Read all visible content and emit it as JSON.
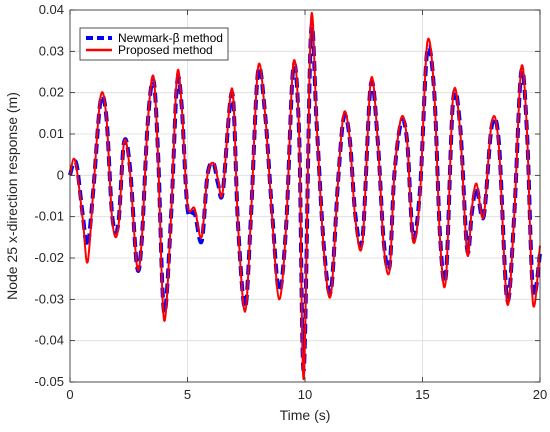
{
  "chart_data": {
    "type": "line",
    "xlabel": "Time (s)",
    "ylabel": "Node 25 x-direction response (m)",
    "xlim": [
      0,
      20
    ],
    "ylim": [
      -0.05,
      0.04
    ],
    "xticks": [
      0,
      5,
      10,
      15,
      20
    ],
    "xtick_labels": [
      "0",
      "5",
      "10",
      "15",
      "20"
    ],
    "yticks": [
      -0.05,
      -0.04,
      -0.03,
      -0.02,
      -0.01,
      0,
      0.01,
      0.02,
      0.03,
      0.04
    ],
    "ytick_labels": [
      "-0.05",
      "-0.04",
      "-0.03",
      "-0.02",
      "-0.01",
      "0",
      "0.01",
      "0.02",
      "0.03",
      "0.04"
    ],
    "grid": true,
    "legend_position": "top-left",
    "series": [
      {
        "name": "Newmark-β method",
        "color": "#0000ff",
        "style": "dashed",
        "x": [
          0,
          0.15,
          0.3,
          0.55,
          0.75,
          1.0,
          1.3,
          1.55,
          1.8,
          2.05,
          2.3,
          2.55,
          2.85,
          3.05,
          3.3,
          3.55,
          3.75,
          4.0,
          4.3,
          4.55,
          4.75,
          5.0,
          5.3,
          5.6,
          5.85,
          6.1,
          6.3,
          6.5,
          6.9,
          7.15,
          7.45,
          7.7,
          8.0,
          8.3,
          8.6,
          8.9,
          9.2,
          9.5,
          9.75,
          9.95,
          10.25,
          10.5,
          10.8,
          11.1,
          11.4,
          11.65,
          11.9,
          12.15,
          12.45,
          12.8,
          13.1,
          13.35,
          13.6,
          13.8,
          14.1,
          14.35,
          14.6,
          14.9,
          15.2,
          15.5,
          15.75,
          16.0,
          16.3,
          16.6,
          16.9,
          17.1,
          17.3,
          17.6,
          17.95,
          18.25,
          18.6,
          18.9,
          19.2,
          19.45,
          19.7,
          20.0
        ],
        "values": [
          0.0,
          0.003,
          0.002,
          -0.01,
          -0.017,
          -0.003,
          0.018,
          0.014,
          -0.01,
          -0.012,
          0.008,
          0.002,
          -0.022,
          -0.016,
          0.012,
          0.023,
          0.005,
          -0.033,
          -0.01,
          0.022,
          0.017,
          -0.008,
          -0.009,
          -0.016,
          0.0,
          0.003,
          -0.002,
          -0.004,
          0.02,
          -0.012,
          -0.032,
          -0.01,
          0.025,
          0.015,
          -0.009,
          -0.028,
          -0.012,
          0.026,
          0.01,
          -0.047,
          0.034,
          0.012,
          -0.017,
          -0.028,
          -0.002,
          0.014,
          0.009,
          -0.01,
          -0.015,
          0.022,
          0.008,
          -0.016,
          -0.022,
          0.0,
          0.013,
          0.008,
          -0.015,
          -0.003,
          0.03,
          0.02,
          -0.015,
          -0.024,
          0.018,
          0.012,
          -0.018,
          -0.009,
          -0.003,
          -0.01,
          0.012,
          0.008,
          -0.03,
          -0.01,
          0.025,
          0.01,
          -0.028,
          -0.019
        ]
      },
      {
        "name": "Proposed method",
        "color": "#ff0000",
        "style": "solid",
        "x": [
          0,
          0.15,
          0.3,
          0.55,
          0.75,
          1.0,
          1.3,
          1.55,
          1.8,
          2.05,
          2.3,
          2.55,
          2.85,
          3.05,
          3.3,
          3.55,
          3.75,
          4.0,
          4.3,
          4.55,
          4.75,
          5.0,
          5.3,
          5.6,
          5.85,
          6.1,
          6.3,
          6.5,
          6.9,
          7.15,
          7.45,
          7.7,
          8.0,
          8.3,
          8.6,
          8.9,
          9.2,
          9.5,
          9.75,
          9.95,
          10.25,
          10.5,
          10.8,
          11.1,
          11.4,
          11.65,
          11.9,
          12.15,
          12.45,
          12.8,
          13.1,
          13.35,
          13.6,
          13.8,
          14.1,
          14.35,
          14.6,
          14.9,
          15.2,
          15.5,
          15.75,
          16.0,
          16.3,
          16.6,
          16.9,
          17.1,
          17.3,
          17.6,
          17.95,
          18.25,
          18.6,
          18.9,
          19.2,
          19.45,
          19.7,
          20.0
        ],
        "values": [
          0.0,
          0.004,
          0.001,
          -0.011,
          -0.021,
          -0.003,
          0.019,
          0.014,
          -0.011,
          -0.013,
          0.008,
          0.001,
          -0.022,
          -0.016,
          0.012,
          0.024,
          0.004,
          -0.035,
          -0.01,
          0.024,
          0.017,
          -0.007,
          -0.008,
          -0.015,
          0.0,
          0.003,
          -0.001,
          -0.004,
          0.021,
          -0.012,
          -0.033,
          -0.01,
          0.026,
          0.015,
          -0.01,
          -0.03,
          -0.012,
          0.027,
          0.01,
          -0.049,
          0.037,
          0.012,
          -0.018,
          -0.029,
          -0.002,
          0.015,
          0.009,
          -0.011,
          -0.016,
          0.023,
          0.008,
          -0.017,
          -0.023,
          0.0,
          0.014,
          0.008,
          -0.016,
          -0.004,
          0.032,
          0.02,
          -0.016,
          -0.025,
          0.019,
          0.011,
          -0.019,
          -0.008,
          -0.002,
          -0.01,
          0.013,
          0.007,
          -0.031,
          -0.01,
          0.026,
          0.01,
          -0.031,
          -0.017
        ]
      }
    ]
  }
}
